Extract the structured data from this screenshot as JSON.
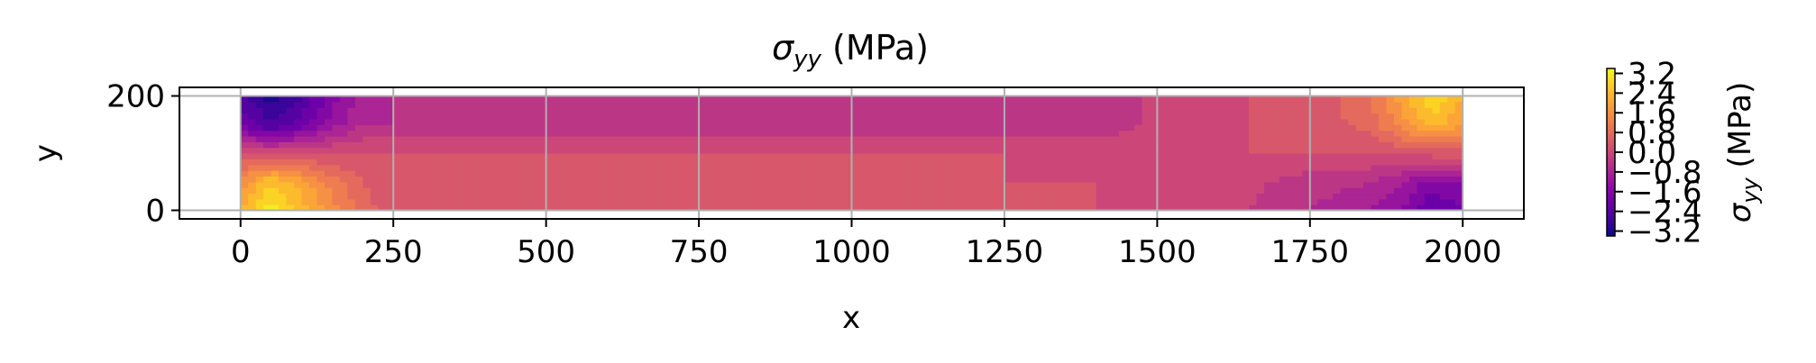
{
  "chart_data": {
    "type": "heatmap",
    "title": "σ_yy (MPa)",
    "title_base": "σ",
    "title_sub": "yy",
    "title_unit": " (MPa)",
    "xlabel": "x",
    "ylabel": "y",
    "xlim": [
      -100,
      2100
    ],
    "ylim": [
      -15,
      215
    ],
    "x_ticks": [
      "0",
      "250",
      "500",
      "750",
      "1000",
      "1250",
      "1500",
      "1750",
      "2000"
    ],
    "y_ticks": [
      "0",
      "200"
    ],
    "grid": true,
    "colormap": "plasma",
    "colorbar": {
      "label_base": "σ",
      "label_sub": "yy",
      "label_unit": " (MPa)",
      "range": [
        -3.4,
        3.4
      ],
      "ticks": [
        "3.2",
        "2.4",
        "1.6",
        "0.8",
        "0.0",
        "−0.8",
        "−1.6",
        "−2.4",
        "−3.2"
      ]
    },
    "field": {
      "x": [
        0,
        50,
        100,
        150,
        200,
        250,
        500,
        750,
        1000,
        1250,
        1400,
        1550,
        1650,
        1750,
        1850,
        1900,
        1950,
        2000
      ],
      "y": [
        0,
        50,
        100,
        150,
        200
      ],
      "values": [
        [
          2.2,
          3.2,
          2.4,
          1.6,
          0.9,
          0.2,
          0.2,
          0.2,
          0.2,
          0.2,
          0.2,
          0.0,
          -0.2,
          -0.6,
          -1.0,
          -1.4,
          -2.2,
          -1.8
        ],
        [
          1.6,
          2.6,
          2.0,
          1.2,
          0.6,
          0.2,
          0.2,
          0.2,
          0.2,
          0.2,
          0.2,
          0.1,
          -0.1,
          -0.4,
          -0.6,
          -1.0,
          -1.6,
          -1.4
        ],
        [
          0.2,
          0.2,
          0.2,
          0.2,
          0.2,
          0.2,
          0.2,
          0.2,
          0.2,
          0.2,
          0.1,
          0.2,
          0.2,
          0.2,
          0.2,
          0.3,
          0.4,
          0.4
        ],
        [
          -1.8,
          -2.6,
          -2.0,
          -1.2,
          -0.6,
          -0.6,
          -0.6,
          -0.6,
          -0.6,
          -0.6,
          -0.5,
          0.1,
          0.2,
          0.3,
          0.8,
          1.6,
          2.4,
          1.8
        ],
        [
          -2.4,
          -3.2,
          -2.6,
          -1.6,
          -0.8,
          -0.6,
          -0.6,
          -0.6,
          -0.6,
          -0.6,
          -0.5,
          0.1,
          0.2,
          0.3,
          1.0,
          2.0,
          3.0,
          2.2
        ]
      ]
    }
  }
}
